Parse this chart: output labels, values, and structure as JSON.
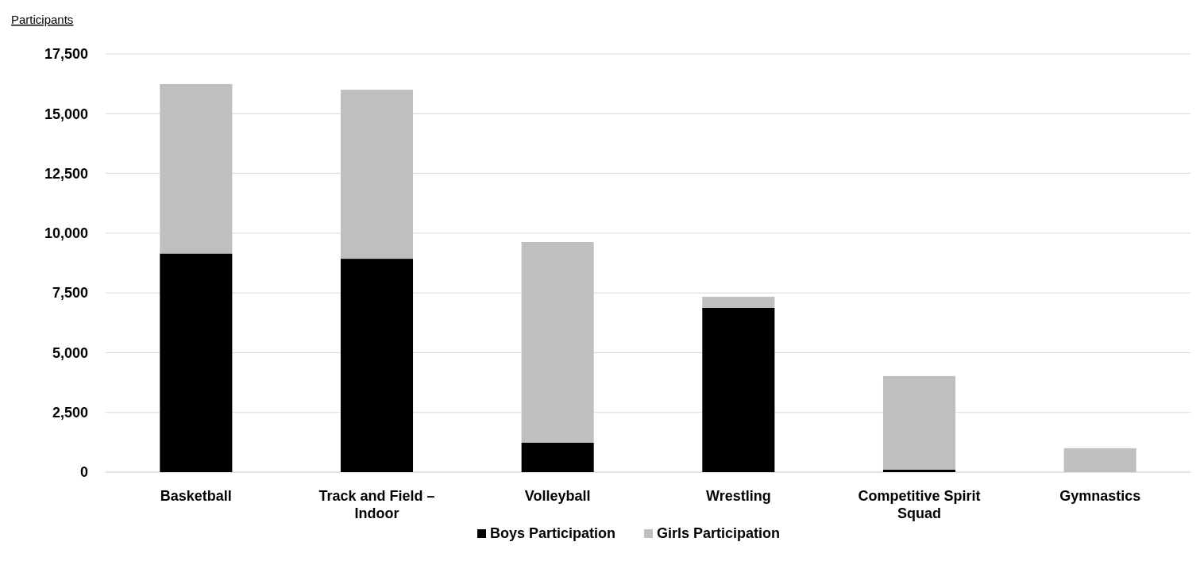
{
  "chart_data": {
    "type": "bar",
    "stacked": true,
    "ylabel": "Participants",
    "categories": [
      "Basketball",
      "Track and Field – Indoor",
      "Volleyball",
      "Wrestling",
      "Competitive Spirit Squad",
      "Gymnastics"
    ],
    "series": [
      {
        "name": "Boys Participation",
        "color": "#000000",
        "values": [
          9150,
          8930,
          1230,
          6880,
          100,
          0
        ]
      },
      {
        "name": "Girls Participation",
        "color": "#bfbfbf",
        "values": [
          7090,
          7070,
          8400,
          460,
          3920,
          1000
        ]
      }
    ],
    "ylim": [
      0,
      17500
    ],
    "yticks": [
      {
        "value": 0,
        "label": "0"
      },
      {
        "value": 2500,
        "label": "2,500"
      },
      {
        "value": 5000,
        "label": "5,000"
      },
      {
        "value": 7500,
        "label": "7,500"
      },
      {
        "value": 10000,
        "label": "10,000"
      },
      {
        "value": 12500,
        "label": "12,500"
      },
      {
        "value": 15000,
        "label": "15,000"
      },
      {
        "value": 17500,
        "label": "17,500"
      }
    ],
    "grid": "y",
    "legend": "bottom"
  }
}
